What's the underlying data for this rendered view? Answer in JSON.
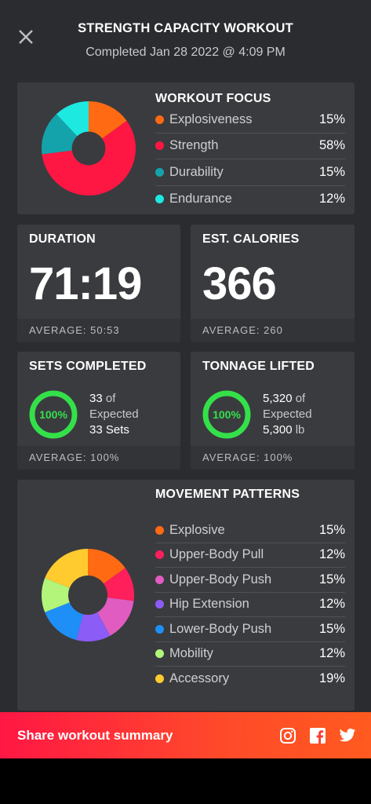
{
  "header": {
    "title": "STRENGTH CAPACITY WORKOUT",
    "subtitle": "Completed Jan 28 2022 @ 4:09 PM"
  },
  "workout_focus": {
    "title": "WORKOUT FOCUS",
    "items": [
      {
        "label": "Explosiveness",
        "pct": "15%",
        "value": 15,
        "color": "#ff6a13"
      },
      {
        "label": "Strength",
        "pct": "58%",
        "value": 58,
        "color": "#ff1744"
      },
      {
        "label": "Durability",
        "pct": "15%",
        "value": 15,
        "color": "#14a3ab"
      },
      {
        "label": "Endurance",
        "pct": "12%",
        "value": 12,
        "color": "#1de9e0"
      }
    ]
  },
  "duration": {
    "title": "DURATION",
    "value": "71:19",
    "average": "AVERAGE: 50:53"
  },
  "calories": {
    "title": "EST. CALORIES",
    "value": "366",
    "average": "AVERAGE: 260"
  },
  "sets": {
    "title": "SETS COMPLETED",
    "ring_label": "100%",
    "progress": 1.0,
    "count": "33",
    "of_text": "of",
    "expected_text": "Expected",
    "expected_value": "33 Sets",
    "average": "AVERAGE: 100%"
  },
  "tonnage": {
    "title": "TONNAGE LIFTED",
    "ring_label": "100%",
    "progress": 1.0,
    "count": "5,320",
    "of_text": "of",
    "expected_text": "Expected",
    "expected_value": "5,300",
    "unit": "lb",
    "average": "AVERAGE: 100%"
  },
  "movement_patterns": {
    "title": "MOVEMENT PATTERNS",
    "items": [
      {
        "label": "Explosive",
        "pct": "15%",
        "value": 15,
        "color": "#ff6a13"
      },
      {
        "label": "Upper-Body Pull",
        "pct": "12%",
        "value": 12,
        "color": "#ff1f5a"
      },
      {
        "label": "Upper-Body Push",
        "pct": "15%",
        "value": 15,
        "color": "#e05cc0"
      },
      {
        "label": "Hip Extension",
        "pct": "12%",
        "value": 12,
        "color": "#8b5cf6"
      },
      {
        "label": "Lower-Body Push",
        "pct": "15%",
        "value": 15,
        "color": "#1e8ff7"
      },
      {
        "label": "Mobility",
        "pct": "12%",
        "value": 12,
        "color": "#b2f57a"
      },
      {
        "label": "Accessory",
        "pct": "19%",
        "value": 19,
        "color": "#ffcb2e"
      }
    ]
  },
  "share": {
    "label": "Share workout summary",
    "icons": [
      "instagram-icon",
      "facebook-icon",
      "twitter-icon"
    ]
  },
  "colors": {
    "ring_green": "#34e04a",
    "accent_red": "#ff1744"
  }
}
